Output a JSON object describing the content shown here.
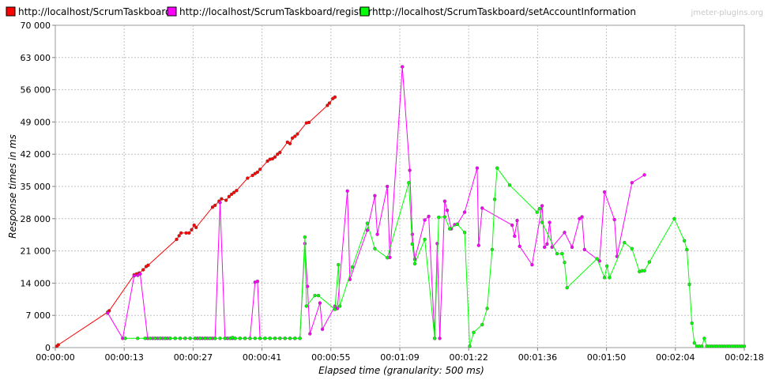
{
  "chart_data": {
    "type": "line",
    "watermark": "jmeter-plugins.org",
    "xlabel": "Elapsed time (granularity: 500 ms)",
    "ylabel": "Response times in ms",
    "xlim": [
      0,
      138
    ],
    "ylim": [
      0,
      70000
    ],
    "grid": true,
    "legend_position": "top",
    "x_ticks": [
      {
        "value": 0,
        "label": "00:00:00"
      },
      {
        "value": 13.8,
        "label": "00:00:13"
      },
      {
        "value": 27.6,
        "label": "00:00:27"
      },
      {
        "value": 41.4,
        "label": "00:00:41"
      },
      {
        "value": 55.2,
        "label": "00:00:55"
      },
      {
        "value": 69,
        "label": "00:01:09"
      },
      {
        "value": 82.8,
        "label": "00:01:22"
      },
      {
        "value": 96.6,
        "label": "00:01:36"
      },
      {
        "value": 110.4,
        "label": "00:01:50"
      },
      {
        "value": 124.2,
        "label": "00:02:04"
      },
      {
        "value": 138,
        "label": "00:02:18"
      }
    ],
    "y_ticks": [
      {
        "value": 0,
        "label": "0"
      },
      {
        "value": 7000,
        "label": "7 000"
      },
      {
        "value": 14000,
        "label": "14 000"
      },
      {
        "value": 21000,
        "label": "21 000"
      },
      {
        "value": 28000,
        "label": "28 000"
      },
      {
        "value": 35000,
        "label": "35 000"
      },
      {
        "value": 42000,
        "label": "42 000"
      },
      {
        "value": 49000,
        "label": "49 000"
      },
      {
        "value": 56000,
        "label": "56 000"
      },
      {
        "value": 63000,
        "label": "63 000"
      },
      {
        "value": 70000,
        "label": "70 000"
      }
    ],
    "series": [
      {
        "name": "http://localhost/ScrumTaskboard/",
        "color": "#ff0000",
        "points": [
          [
            0.3,
            300
          ],
          [
            0.6,
            600
          ],
          [
            10.5,
            7700
          ],
          [
            10.8,
            8000
          ],
          [
            15.8,
            15800
          ],
          [
            16.3,
            16000
          ],
          [
            16.8,
            16200
          ],
          [
            17.6,
            16900
          ],
          [
            18.2,
            17600
          ],
          [
            18.6,
            17900
          ],
          [
            24.3,
            23500
          ],
          [
            24.8,
            24300
          ],
          [
            25.2,
            24900
          ],
          [
            26.2,
            24900
          ],
          [
            26.8,
            24900
          ],
          [
            27.3,
            25600
          ],
          [
            27.8,
            26600
          ],
          [
            28.2,
            26100
          ],
          [
            31.5,
            30500
          ],
          [
            32.0,
            30900
          ],
          [
            32.8,
            31800
          ],
          [
            33.3,
            32300
          ],
          [
            34.2,
            32000
          ],
          [
            34.8,
            32800
          ],
          [
            35.3,
            33300
          ],
          [
            35.8,
            33700
          ],
          [
            36.3,
            34100
          ],
          [
            38.5,
            36800
          ],
          [
            39.5,
            37400
          ],
          [
            40.0,
            37800
          ],
          [
            40.5,
            38100
          ],
          [
            41.0,
            38700
          ],
          [
            42.5,
            40500
          ],
          [
            43.0,
            40900
          ],
          [
            43.5,
            41000
          ],
          [
            44.0,
            41400
          ],
          [
            44.5,
            42000
          ],
          [
            45.0,
            42400
          ],
          [
            46.5,
            44600
          ],
          [
            47.0,
            44300
          ],
          [
            47.5,
            45500
          ],
          [
            48.0,
            45900
          ],
          [
            48.5,
            46400
          ],
          [
            50.3,
            48800
          ],
          [
            50.8,
            48900
          ],
          [
            54.5,
            52600
          ],
          [
            54.9,
            53100
          ],
          [
            55.6,
            54100
          ],
          [
            56.0,
            54400
          ]
        ]
      },
      {
        "name": "http://localhost/ScrumTaskboard/register",
        "color": "#ff00ff",
        "points": [
          [
            10.5,
            7500
          ],
          [
            13.5,
            2000
          ],
          [
            15.8,
            15600
          ],
          [
            16.5,
            15700
          ],
          [
            17.0,
            16000
          ],
          [
            18.5,
            2000
          ],
          [
            19.5,
            2000
          ],
          [
            20.0,
            2000
          ],
          [
            20.5,
            2000
          ],
          [
            21.0,
            2000
          ],
          [
            21.5,
            2000
          ],
          [
            22.0,
            2000
          ],
          [
            22.5,
            2000
          ],
          [
            23.0,
            2000
          ],
          [
            24.0,
            2000
          ],
          [
            25.0,
            2000
          ],
          [
            26.0,
            2000
          ],
          [
            27.0,
            2000
          ],
          [
            28.0,
            2000
          ],
          [
            28.5,
            2000
          ],
          [
            29.0,
            2000
          ],
          [
            29.5,
            2000
          ],
          [
            30.0,
            2000
          ],
          [
            30.5,
            2000
          ],
          [
            31.0,
            2000
          ],
          [
            31.5,
            2000
          ],
          [
            32.0,
            2000
          ],
          [
            33.0,
            31500
          ],
          [
            34.0,
            2000
          ],
          [
            34.5,
            2000
          ],
          [
            35.0,
            2000
          ],
          [
            35.5,
            2000
          ],
          [
            36.0,
            2000
          ],
          [
            37.0,
            2000
          ],
          [
            38.0,
            2000
          ],
          [
            39.0,
            2000
          ],
          [
            40.0,
            14200
          ],
          [
            40.5,
            14400
          ],
          [
            41.0,
            2000
          ],
          [
            42.0,
            2000
          ],
          [
            43.0,
            2000
          ],
          [
            44.0,
            2000
          ],
          [
            45.0,
            2000
          ],
          [
            46.0,
            2000
          ],
          [
            47.0,
            2000
          ],
          [
            48.0,
            2000
          ],
          [
            49.0,
            2000
          ],
          [
            50.0,
            22600
          ],
          [
            50.5,
            13300
          ],
          [
            51.0,
            3000
          ],
          [
            53.0,
            9700
          ],
          [
            53.5,
            4000
          ],
          [
            56.0,
            9000
          ],
          [
            56.5,
            8500
          ],
          [
            58.5,
            34000
          ],
          [
            59.0,
            14800
          ],
          [
            62.5,
            25500
          ],
          [
            64.0,
            33000
          ],
          [
            64.5,
            24600
          ],
          [
            66.5,
            35000
          ],
          [
            67.0,
            19600
          ],
          [
            69.5,
            61000
          ],
          [
            71.0,
            38500
          ],
          [
            71.5,
            24600
          ],
          [
            72.0,
            19200
          ],
          [
            74.0,
            27700
          ],
          [
            74.8,
            28500
          ],
          [
            76.0,
            2000
          ],
          [
            76.5,
            22600
          ],
          [
            77.0,
            2000
          ],
          [
            78.0,
            31800
          ],
          [
            78.5,
            29800
          ],
          [
            79.3,
            25800
          ],
          [
            80.0,
            26700
          ],
          [
            80.5,
            26800
          ],
          [
            82.0,
            29400
          ],
          [
            84.5,
            39000
          ],
          [
            84.8,
            22200
          ],
          [
            85.5,
            30300
          ],
          [
            91.5,
            26600
          ],
          [
            92.0,
            24200
          ],
          [
            92.5,
            27600
          ],
          [
            93.0,
            22000
          ],
          [
            95.5,
            18000
          ],
          [
            97.5,
            30800
          ],
          [
            98.0,
            21800
          ],
          [
            98.5,
            22500
          ],
          [
            99.0,
            27200
          ],
          [
            99.5,
            21800
          ],
          [
            102.0,
            25000
          ],
          [
            103.5,
            21800
          ],
          [
            105.0,
            28000
          ],
          [
            105.5,
            28400
          ],
          [
            106.0,
            21300
          ],
          [
            109.0,
            18800
          ],
          [
            110.0,
            33800
          ],
          [
            112.0,
            27800
          ],
          [
            112.5,
            19800
          ],
          [
            115.5,
            35800
          ],
          [
            118.0,
            37500
          ]
        ]
      },
      {
        "name": "http://localhost/ScrumTaskboard/setAccountInformation",
        "color": "#00ff00",
        "points": [
          [
            14.0,
            2000
          ],
          [
            16.5,
            2000
          ],
          [
            18.0,
            2000
          ],
          [
            19.0,
            2000
          ],
          [
            20.0,
            2000
          ],
          [
            21.0,
            2000
          ],
          [
            22.0,
            2000
          ],
          [
            23.0,
            2000
          ],
          [
            24.0,
            2000
          ],
          [
            25.0,
            2000
          ],
          [
            26.0,
            2000
          ],
          [
            27.0,
            2000
          ],
          [
            28.0,
            2000
          ],
          [
            29.0,
            2000
          ],
          [
            30.0,
            2000
          ],
          [
            31.0,
            2000
          ],
          [
            32.0,
            2000
          ],
          [
            33.0,
            2000
          ],
          [
            34.0,
            2000
          ],
          [
            35.0,
            2000
          ],
          [
            35.5,
            2200
          ],
          [
            36.0,
            2000
          ],
          [
            37.0,
            2000
          ],
          [
            38.0,
            2000
          ],
          [
            39.0,
            2000
          ],
          [
            40.0,
            2000
          ],
          [
            41.0,
            2000
          ],
          [
            42.0,
            2000
          ],
          [
            43.0,
            2000
          ],
          [
            44.0,
            2000
          ],
          [
            45.0,
            2000
          ],
          [
            46.0,
            2000
          ],
          [
            47.0,
            2000
          ],
          [
            48.0,
            2000
          ],
          [
            49.0,
            2000
          ],
          [
            50.0,
            24000
          ],
          [
            50.3,
            9000
          ],
          [
            52.0,
            11300
          ],
          [
            52.7,
            11300
          ],
          [
            56.0,
            8300
          ],
          [
            56.7,
            18000
          ],
          [
            57.0,
            9000
          ],
          [
            59.5,
            17500
          ],
          [
            62.5,
            27000
          ],
          [
            64.0,
            21500
          ],
          [
            66.5,
            19500
          ],
          [
            70.8,
            35800
          ],
          [
            71.5,
            22500
          ],
          [
            72.0,
            18200
          ],
          [
            74.0,
            23500
          ],
          [
            76.0,
            2000
          ],
          [
            76.8,
            28300
          ],
          [
            78.0,
            28400
          ],
          [
            79.0,
            25800
          ],
          [
            80.5,
            26800
          ],
          [
            82.0,
            25000
          ],
          [
            83.0,
            300
          ],
          [
            83.8,
            3300
          ],
          [
            85.5,
            5000
          ],
          [
            86.5,
            8500
          ],
          [
            87.5,
            21300
          ],
          [
            88.0,
            32200
          ],
          [
            88.5,
            39000
          ],
          [
            91.0,
            35300
          ],
          [
            96.5,
            29400
          ],
          [
            97.0,
            30200
          ],
          [
            97.5,
            27200
          ],
          [
            100.5,
            20400
          ],
          [
            101.5,
            20400
          ],
          [
            102.0,
            18500
          ],
          [
            102.5,
            13000
          ],
          [
            108.5,
            19300
          ],
          [
            110.0,
            15200
          ],
          [
            110.5,
            17700
          ],
          [
            111.0,
            15200
          ],
          [
            114.0,
            22800
          ],
          [
            115.5,
            21500
          ],
          [
            117.0,
            16500
          ],
          [
            117.5,
            16700
          ],
          [
            118.0,
            16700
          ],
          [
            119.0,
            18600
          ],
          [
            124.0,
            28000
          ],
          [
            126.0,
            23200
          ],
          [
            126.5,
            21300
          ],
          [
            127.0,
            13700
          ],
          [
            127.5,
            5300
          ],
          [
            128.0,
            1000
          ],
          [
            128.5,
            300
          ],
          [
            129.0,
            300
          ],
          [
            129.5,
            300
          ],
          [
            130.0,
            2000
          ],
          [
            130.5,
            300
          ],
          [
            131.0,
            300
          ],
          [
            131.5,
            300
          ],
          [
            132.0,
            300
          ],
          [
            132.5,
            300
          ],
          [
            133.0,
            300
          ],
          [
            133.5,
            300
          ],
          [
            134.0,
            300
          ],
          [
            134.5,
            300
          ],
          [
            135.0,
            300
          ],
          [
            135.5,
            300
          ],
          [
            136.0,
            300
          ],
          [
            136.5,
            300
          ],
          [
            137.0,
            300
          ],
          [
            137.5,
            300
          ],
          [
            138.0,
            300
          ]
        ]
      }
    ]
  }
}
